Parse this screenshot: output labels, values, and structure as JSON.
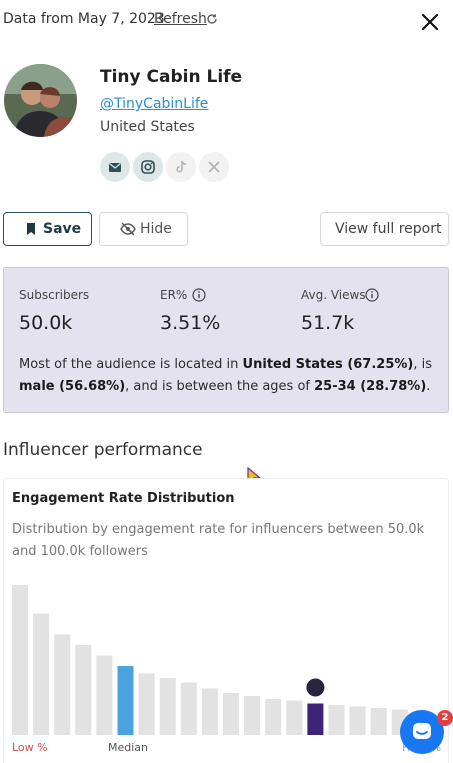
{
  "header": {
    "date_text": "Data from May 7, 2023",
    "refresh_label": "Refresh"
  },
  "profile": {
    "name": "Tiny Cabin Life",
    "handle": "@TinyCabinLife",
    "country": "United States",
    "socials": [
      {
        "icon": "email-icon",
        "active": true
      },
      {
        "icon": "instagram-icon",
        "active": true
      },
      {
        "icon": "tiktok-icon",
        "active": false
      },
      {
        "icon": "twitch-icon",
        "active": false
      }
    ]
  },
  "actions": {
    "save_label": "Save",
    "hide_label": "Hide",
    "report_label": "View full report"
  },
  "stats": {
    "subscribers_label": "Subscribers",
    "subscribers_value": "50.0k",
    "er_label": "ER%",
    "er_value": "3.51%",
    "views_label": "Avg. Views",
    "views_value": "51.7k",
    "summary_1": "Most of the audience is located in ",
    "summary_country": "United States (67.25%)",
    "summary_2": ", is ",
    "summary_gender": "male (56.68%)",
    "summary_3": ", and is between the ages of ",
    "summary_age": "25-34 (28.78%)",
    "summary_4": "."
  },
  "performance": {
    "section_title": "Influencer performance",
    "card_title": "Engagement Rate Distribution",
    "card_subtitle": "Distribution by engagement rate for influencers between 50.0k and 100.0k followers"
  },
  "chart_data": {
    "type": "bar",
    "x_low_label": "Low %",
    "x_median_label": "Median",
    "x_high_label": "High %",
    "values": [
      100,
      81,
      67,
      60,
      53,
      46,
      41,
      38,
      35,
      31,
      28,
      26,
      24,
      23,
      21,
      20,
      19,
      18,
      17,
      16
    ],
    "median_index": 5,
    "influencer_index": 14,
    "colors": {
      "default": "#e2e2e2",
      "median": "#4aa3df",
      "influencer": "#3b2577"
    }
  },
  "chat": {
    "badge_count": "2"
  },
  "colors": {
    "accent": "#2b8fd3",
    "stats_bg": "#e5e2ef",
    "stats_border": "#c9c3de"
  }
}
